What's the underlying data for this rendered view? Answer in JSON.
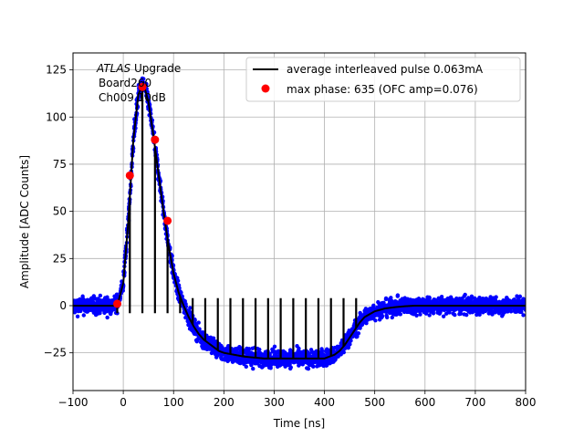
{
  "chart_data": {
    "type": "scatter",
    "title": "",
    "xlabel": "Time [ns]",
    "ylabel": "Amplitude [ADC Counts]",
    "xlim": [
      -100,
      800
    ],
    "ylim": [
      -45,
      134
    ],
    "xticks": [
      -100,
      0,
      100,
      200,
      300,
      400,
      500,
      600,
      700,
      800
    ],
    "yticks": [
      -25,
      0,
      25,
      50,
      75,
      100,
      125
    ],
    "grid": true,
    "legend_position": "top-right",
    "annotation": {
      "line1_italic": "ATLAS",
      "line1_rest": " Upgrade",
      "line2": "Board260",
      "line3": "Ch009 10dB"
    },
    "colors": {
      "scatter": "#0000ff",
      "average_line": "#000000",
      "max_phase": "#ff0000",
      "grid": "#b0b0b0"
    },
    "series": [
      {
        "name": "average interleaved pulse 0.063mA",
        "kind": "line",
        "x": [
          -100,
          -20,
          -10,
          0,
          10,
          20,
          30,
          40,
          50,
          60,
          70,
          80,
          90,
          100,
          110,
          120,
          130,
          140,
          150,
          160,
          170,
          180,
          190,
          200,
          220,
          240,
          260,
          280,
          300,
          320,
          340,
          360,
          380,
          400,
          410,
          420,
          430,
          440,
          450,
          460,
          470,
          480,
          500,
          520,
          540,
          560,
          580,
          600,
          650,
          700,
          800
        ],
        "y": [
          0,
          0,
          2,
          12,
          45,
          88,
          112,
          118,
          108,
          90,
          70,
          50,
          32,
          17,
          7,
          0,
          -6,
          -11,
          -15,
          -18,
          -20,
          -22,
          -24,
          -25,
          -26,
          -27,
          -27.5,
          -28,
          -28,
          -28,
          -28,
          -28,
          -28,
          -28,
          -27,
          -26,
          -24,
          -21,
          -17,
          -13,
          -9,
          -6,
          -3,
          -1.5,
          -0.8,
          -0.3,
          0,
          0,
          0,
          0,
          0
        ]
      },
      {
        "name": "max phase: 635 (OFC amp=0.076)",
        "kind": "points",
        "x": [
          -12,
          13,
          38,
          63,
          88
        ],
        "y": [
          1,
          69,
          116,
          88,
          45
        ]
      }
    ],
    "sample_spacing_ns": 25,
    "sample_offset_ns": -12
  }
}
